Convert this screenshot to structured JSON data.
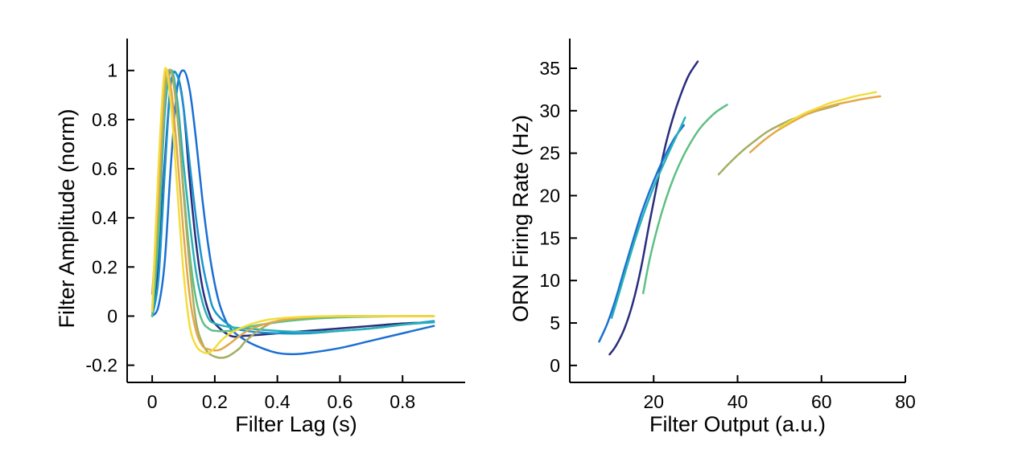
{
  "chart_data": [
    {
      "type": "line",
      "title": "",
      "xlabel": "Filter Lag (s)",
      "ylabel": "Filter Amplitude (norm)",
      "xlim": [
        -0.08,
        1.0
      ],
      "ylim": [
        -0.27,
        1.13
      ],
      "xticks": [
        0,
        0.2,
        0.4,
        0.6,
        0.8
      ],
      "xtick_labels": [
        "0",
        "0.2",
        "0.4",
        "0.6",
        "0.8"
      ],
      "yticks": [
        -0.2,
        0,
        0.2,
        0.4,
        0.6,
        0.8,
        1
      ],
      "ytick_labels": [
        "-0.2",
        "0",
        "0.2",
        "0.4",
        "0.6",
        "0.8",
        "1"
      ],
      "grid": false,
      "legend": "none",
      "series": [
        {
          "color": "#2a2d7c",
          "x": [
            0,
            0.02,
            0.04,
            0.06,
            0.08,
            0.1,
            0.12,
            0.14,
            0.16,
            0.18,
            0.2,
            0.25,
            0.3,
            0.4,
            0.5,
            0.6,
            0.7,
            0.8,
            0.9
          ],
          "y": [
            0,
            0.22,
            0.62,
            0.95,
            0.98,
            0.85,
            0.55,
            0.3,
            0.12,
            0.02,
            -0.03,
            -0.08,
            -0.08,
            -0.07,
            -0.06,
            -0.05,
            -0.04,
            -0.03,
            -0.025
          ]
        },
        {
          "color": "#1a6fd4",
          "x": [
            0,
            0.02,
            0.04,
            0.06,
            0.08,
            0.1,
            0.12,
            0.14,
            0.16,
            0.18,
            0.2,
            0.22,
            0.25,
            0.3,
            0.35,
            0.4,
            0.45,
            0.5,
            0.6,
            0.7,
            0.8,
            0.9
          ],
          "y": [
            0,
            0.04,
            0.22,
            0.62,
            0.93,
            1.0,
            0.92,
            0.72,
            0.48,
            0.28,
            0.13,
            0.03,
            -0.05,
            -0.1,
            -0.13,
            -0.15,
            -0.155,
            -0.15,
            -0.13,
            -0.1,
            -0.07,
            -0.04
          ]
        },
        {
          "color": "#1a94cf",
          "x": [
            0,
            0.02,
            0.04,
            0.06,
            0.08,
            0.1,
            0.12,
            0.14,
            0.16,
            0.18,
            0.2,
            0.25,
            0.3,
            0.4,
            0.5,
            0.6,
            0.7,
            0.8,
            0.9
          ],
          "y": [
            0,
            0.15,
            0.58,
            0.95,
            0.98,
            0.85,
            0.62,
            0.4,
            0.22,
            0.1,
            0.02,
            -0.04,
            -0.06,
            -0.07,
            -0.07,
            -0.06,
            -0.05,
            -0.035,
            -0.02
          ]
        },
        {
          "color": "#2ab0b6",
          "x": [
            0,
            0.02,
            0.04,
            0.06,
            0.08,
            0.1,
            0.12,
            0.14,
            0.16,
            0.18,
            0.2,
            0.25,
            0.3,
            0.4,
            0.5,
            0.6,
            0.7,
            0.8,
            0.9
          ],
          "y": [
            0,
            0.3,
            0.82,
            1.0,
            0.88,
            0.62,
            0.38,
            0.18,
            0.06,
            -0.01,
            -0.03,
            -0.045,
            -0.05,
            -0.06,
            -0.065,
            -0.06,
            -0.05,
            -0.035,
            -0.025
          ]
        },
        {
          "color": "#5fbf85",
          "x": [
            0,
            0.02,
            0.04,
            0.06,
            0.08,
            0.1,
            0.12,
            0.14,
            0.16,
            0.18,
            0.2,
            0.25,
            0.3,
            0.4,
            0.5,
            0.6,
            0.7,
            0.8,
            0.9
          ],
          "y": [
            0,
            0.35,
            0.88,
            1.0,
            0.82,
            0.52,
            0.25,
            0.07,
            -0.02,
            -0.05,
            -0.06,
            -0.06,
            -0.045,
            -0.025,
            -0.012,
            -0.005,
            -0.002,
            0.0,
            0.0
          ]
        },
        {
          "color": "#a6ad62",
          "x": [
            0,
            0.02,
            0.04,
            0.06,
            0.08,
            0.1,
            0.12,
            0.14,
            0.16,
            0.18,
            0.2,
            0.22,
            0.24,
            0.26,
            0.28,
            0.3,
            0.35,
            0.4,
            0.5,
            0.6,
            0.7,
            0.8,
            0.9
          ],
          "y": [
            0.09,
            0.45,
            0.9,
            1.0,
            0.82,
            0.5,
            0.2,
            -0.02,
            -0.11,
            -0.15,
            -0.165,
            -0.17,
            -0.165,
            -0.15,
            -0.13,
            -0.1,
            -0.05,
            -0.02,
            -0.005,
            0.0,
            0.0,
            0.0,
            0.0
          ]
        },
        {
          "color": "#e3a84a",
          "x": [
            0,
            0.02,
            0.04,
            0.06,
            0.08,
            0.1,
            0.12,
            0.14,
            0.16,
            0.18,
            0.2,
            0.22,
            0.25,
            0.28,
            0.32,
            0.4,
            0.5,
            0.6,
            0.7,
            0.8,
            0.9
          ],
          "y": [
            0.02,
            0.5,
            0.97,
            0.93,
            0.66,
            0.34,
            0.08,
            -0.06,
            -0.12,
            -0.135,
            -0.14,
            -0.135,
            -0.11,
            -0.08,
            -0.05,
            -0.02,
            -0.005,
            0.0,
            0.0,
            0.0,
            0.0
          ]
        },
        {
          "color": "#f2dc3c",
          "x": [
            0,
            0.02,
            0.04,
            0.06,
            0.08,
            0.1,
            0.12,
            0.14,
            0.16,
            0.18,
            0.2,
            0.22,
            0.25,
            0.3,
            0.35,
            0.4,
            0.5,
            0.6,
            0.7,
            0.8,
            0.9
          ],
          "y": [
            0.02,
            0.6,
            1.0,
            0.86,
            0.52,
            0.18,
            -0.04,
            -0.12,
            -0.145,
            -0.15,
            -0.13,
            -0.1,
            -0.07,
            -0.04,
            -0.02,
            -0.01,
            -0.002,
            0.0,
            0.0,
            0.0,
            0.0
          ]
        }
      ]
    },
    {
      "type": "line",
      "title": "",
      "xlabel": "Filter Output (a.u.)",
      "ylabel": "ORN Firing Rate (Hz)",
      "xlim": [
        0,
        80
      ],
      "ylim": [
        -2,
        38.5
      ],
      "xticks": [
        20,
        40,
        60,
        80
      ],
      "xtick_labels": [
        "20",
        "40",
        "60",
        "80"
      ],
      "yticks": [
        0,
        5,
        10,
        15,
        20,
        25,
        30,
        35
      ],
      "ytick_labels": [
        "0",
        "5",
        "10",
        "15",
        "20",
        "25",
        "30",
        "35"
      ],
      "grid": false,
      "legend": "none",
      "series": [
        {
          "color": "#2a2d7c",
          "x": [
            9.5,
            11,
            13,
            15,
            17,
            19,
            21,
            23,
            25,
            27,
            28.5,
            30.5
          ],
          "y": [
            1.3,
            2.3,
            4.3,
            7.3,
            11.5,
            16.8,
            21.8,
            26.3,
            29.8,
            32.6,
            34.3,
            35.8
          ]
        },
        {
          "color": "#1a6fd4",
          "x": [
            7,
            9,
            11,
            13,
            15,
            17,
            19,
            21,
            23,
            25,
            27.2
          ],
          "y": [
            2.8,
            5.0,
            7.9,
            11.3,
            14.6,
            17.8,
            20.5,
            22.9,
            25.0,
            26.8,
            28.3
          ]
        },
        {
          "color": "#2ab0b6",
          "x": [
            10,
            12,
            14,
            16,
            18,
            20,
            22,
            24,
            26,
            27.5
          ],
          "y": [
            5.6,
            8.9,
            12.3,
            15.5,
            18.4,
            21.0,
            23.3,
            25.5,
            27.6,
            29.2
          ]
        },
        {
          "color": "#5fbf85",
          "x": [
            17.5,
            19,
            21,
            23,
            25,
            27,
            29,
            31,
            33,
            35,
            37.5
          ],
          "y": [
            8.5,
            12.4,
            16.4,
            19.7,
            22.4,
            24.6,
            26.4,
            27.9,
            29.0,
            29.9,
            30.7
          ]
        },
        {
          "color": "#a6ad62",
          "x": [
            35.5,
            38,
            41,
            44,
            47,
            50,
            53,
            56,
            59,
            62,
            64
          ],
          "y": [
            22.5,
            23.8,
            25.2,
            26.4,
            27.5,
            28.3,
            29.0,
            29.5,
            30.0,
            30.4,
            30.7
          ]
        },
        {
          "color": "#e3a84a",
          "x": [
            43,
            46,
            49,
            52,
            55,
            58,
            61,
            64,
            67,
            70,
            74
          ],
          "y": [
            25.1,
            26.4,
            27.5,
            28.4,
            29.2,
            29.9,
            30.4,
            30.8,
            31.1,
            31.4,
            31.7
          ]
        },
        {
          "color": "#f2dc3c",
          "x": [
            50,
            53,
            56,
            59,
            62,
            65,
            68,
            71,
            73
          ],
          "y": [
            28.0,
            28.9,
            29.7,
            30.3,
            30.9,
            31.3,
            31.7,
            32.0,
            32.2
          ]
        }
      ]
    }
  ]
}
